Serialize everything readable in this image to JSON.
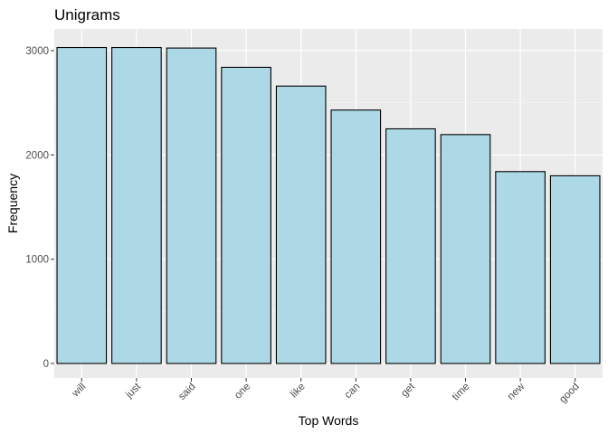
{
  "chart_data": {
    "type": "bar",
    "title": "Unigrams",
    "xlabel": "Top Words",
    "ylabel": "Frequency",
    "categories": [
      "will",
      "just",
      "said",
      "one",
      "like",
      "can",
      "get",
      "time",
      "new",
      "good"
    ],
    "values": [
      3030,
      3030,
      3025,
      2840,
      2660,
      2430,
      2250,
      2195,
      1840,
      1800
    ],
    "ylim": [
      0,
      3200
    ],
    "yticks": [
      0,
      1000,
      2000,
      3000
    ],
    "grid": true,
    "legend": "none",
    "colors": {
      "bar_fill": "#add8e6",
      "bar_stroke": "#000000",
      "panel_background": "#ebebeb",
      "grid_major": "#ffffff",
      "grid_minor": "#f5f5f5"
    }
  }
}
